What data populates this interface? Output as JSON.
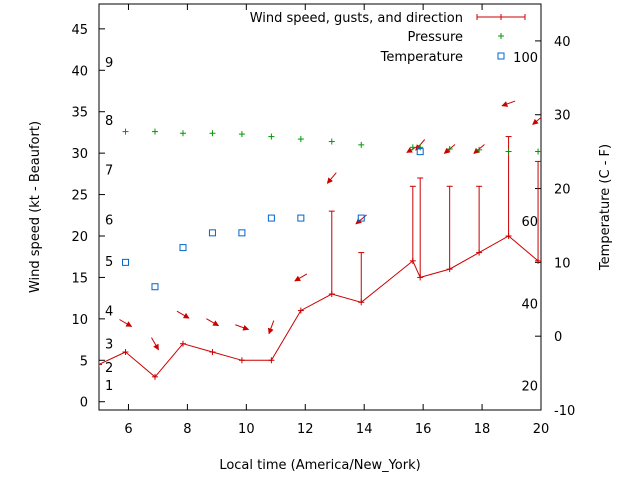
{
  "chart_data": {
    "type": "line",
    "xlabel": "Local time (America/New_York)",
    "ylabel": "Wind speed (kt - Beaufort)",
    "y2label": "Temperature (C - F)",
    "xlim": [
      5,
      20
    ],
    "ylim": [
      -1,
      48
    ],
    "y2lim": [
      -10,
      45
    ],
    "x_ticks": [
      6,
      8,
      10,
      12,
      14,
      16,
      18,
      20
    ],
    "y_ticks": [
      0,
      5,
      10,
      15,
      20,
      25,
      30,
      35,
      40,
      45
    ],
    "y2_ticks": [
      -10,
      0,
      10,
      20,
      30,
      40
    ],
    "beaufort_labels": [
      {
        "label": "1",
        "kt": 2
      },
      {
        "label": "2",
        "kt": 4.2
      },
      {
        "label": "3",
        "kt": 7
      },
      {
        "label": "4",
        "kt": 11
      },
      {
        "label": "5",
        "kt": 17
      },
      {
        "label": "6",
        "kt": 22
      },
      {
        "label": "7",
        "kt": 28
      },
      {
        "label": "8",
        "kt": 34
      },
      {
        "label": "9",
        "kt": 41
      }
    ],
    "fahrenheit_labels": [
      {
        "label": "20",
        "c": -6.7
      },
      {
        "label": "40",
        "c": 4.4
      },
      {
        "label": "60",
        "c": 15.6
      },
      {
        "label": "100",
        "c": 37.8
      }
    ],
    "legend": [
      {
        "label": "Wind speed, gusts, and direction",
        "color": "#cc0000",
        "marker": "errorbar"
      },
      {
        "label": "Pressure",
        "color": "#009900",
        "marker": "plus"
      },
      {
        "label": "Temperature",
        "color": "#0066cc",
        "marker": "square"
      }
    ],
    "series": [
      {
        "name": "Wind speed",
        "color": "#cc0000",
        "x": [
          5,
          5.9,
          6.9,
          7.85,
          8.85,
          9.85,
          10.85,
          11.85,
          12.9,
          13.9,
          15.65,
          15.9,
          16.9,
          17.9,
          18.9,
          19.9
        ],
        "values": [
          4.5,
          6,
          3,
          7,
          6,
          5,
          5,
          11,
          13,
          12,
          17,
          15,
          16,
          18,
          20,
          17
        ],
        "gusts": [
          null,
          null,
          null,
          null,
          null,
          null,
          null,
          null,
          23,
          18,
          26,
          27,
          26,
          26,
          32,
          29
        ]
      },
      {
        "name": "Wind direction",
        "color": "#cc0000",
        "points": [
          {
            "x": 5.9,
            "kt": 9.5,
            "deg": 300
          },
          {
            "x": 6.9,
            "kt": 7,
            "deg": 330
          },
          {
            "x": 7.85,
            "kt": 10.5,
            "deg": 300
          },
          {
            "x": 8.85,
            "kt": 9.6,
            "deg": 300
          },
          {
            "x": 9.85,
            "kt": 9,
            "deg": 290
          },
          {
            "x": 10.85,
            "kt": 9,
            "deg": 20
          },
          {
            "x": 11.85,
            "kt": 15,
            "deg": 60
          },
          {
            "x": 12.9,
            "kt": 27,
            "deg": 40
          },
          {
            "x": 13.9,
            "kt": 22,
            "deg": 50
          },
          {
            "x": 15.65,
            "kt": 30.5,
            "deg": 60
          },
          {
            "x": 15.9,
            "kt": 31,
            "deg": 40
          },
          {
            "x": 16.9,
            "kt": 30.5,
            "deg": 50
          },
          {
            "x": 17.9,
            "kt": 30.5,
            "deg": 50
          },
          {
            "x": 18.9,
            "kt": 36,
            "deg": 70
          },
          {
            "x": 19.9,
            "kt": 34,
            "deg": 50
          }
        ]
      },
      {
        "name": "Pressure",
        "color": "#009900",
        "x": [
          5.9,
          6.9,
          7.85,
          8.85,
          9.85,
          10.85,
          11.85,
          12.9,
          13.9,
          15.65,
          15.9,
          16.9,
          17.9,
          18.9,
          19.9
        ],
        "values": [
          32.6,
          32.6,
          32.4,
          32.4,
          32.3,
          32,
          31.7,
          31.4,
          31,
          30.7,
          30.7,
          30.5,
          30.4,
          30.2,
          30.2
        ]
      },
      {
        "name": "Temperature",
        "color": "#0066cc",
        "x": [
          5.9,
          6.9,
          7.85,
          8.85,
          9.85,
          10.85,
          11.85,
          13.9,
          15.9
        ],
        "values": [
          10,
          6.7,
          12,
          14,
          14,
          16,
          16,
          16,
          25
        ]
      }
    ]
  }
}
